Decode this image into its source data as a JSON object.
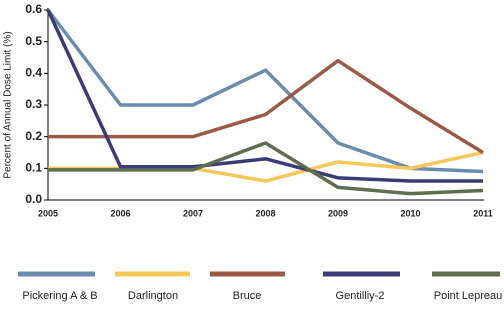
{
  "chart_data": {
    "type": "line",
    "y_label": "Percent of Annual Dose Limit (%)",
    "categories": [
      "2005",
      "2006",
      "2007",
      "2008",
      "2009",
      "2010",
      "2011"
    ],
    "series": [
      {
        "name": "Pickering A & B",
        "color": "#6a8caf",
        "values": [
          0.6,
          0.3,
          0.3,
          0.41,
          0.18,
          0.1,
          0.09
        ]
      },
      {
        "name": "Darlington",
        "color": "#f5c85a",
        "values": [
          0.1,
          0.1,
          0.1,
          0.06,
          0.12,
          0.1,
          0.15
        ]
      },
      {
        "name": "Bruce",
        "color": "#9b5a46",
        "values": [
          0.2,
          0.2,
          0.2,
          0.27,
          0.44,
          0.29,
          0.15
        ]
      },
      {
        "name": "Gentilliy-2",
        "color": "#3c3b77",
        "values": [
          0.6,
          0.105,
          0.105,
          0.13,
          0.07,
          0.06,
          0.06
        ]
      },
      {
        "name": "Point Lepreau",
        "color": "#5e6e4f",
        "values": [
          0.095,
          0.095,
          0.095,
          0.18,
          0.04,
          0.02,
          0.03
        ]
      }
    ],
    "ylim": [
      0,
      0.6
    ],
    "yticks": [
      {
        "value": 0,
        "label": "0.0"
      },
      0.1,
      0.2,
      0.3,
      0.4,
      0.5,
      0.6
    ],
    "grid": false
  }
}
